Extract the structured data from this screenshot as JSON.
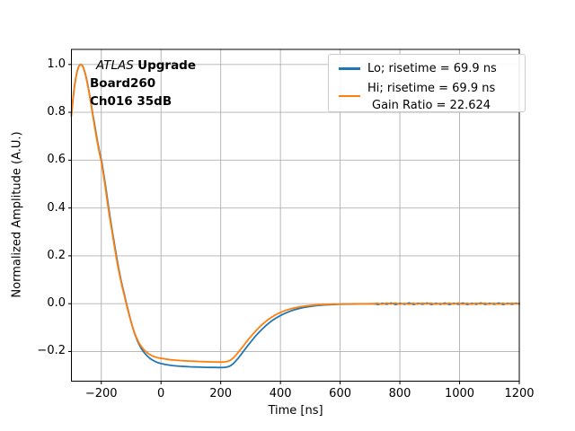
{
  "figure": {
    "background": "#ffffff",
    "annotation": {
      "line1_italic": "ATLAS",
      "line1_bold": "Upgrade",
      "line2": "Board260",
      "line3": "Ch016 35dB"
    },
    "legend": {
      "lo_label": "Lo; risetime = 69.9 ns",
      "hi_label_line1": "Hi; risetime = 69.9 ns",
      "hi_label_line2": "Gain Ratio = 22.624"
    }
  },
  "chart_data": {
    "type": "line",
    "title": "",
    "xlabel": "Time [ns]",
    "ylabel": "Normalized Amplitude (A.U.)",
    "xlim": [
      -300,
      1200
    ],
    "ylim": [
      -0.32,
      1.065
    ],
    "grid": true,
    "grid_color": "#b0b0b0",
    "spine_color": "#000000",
    "legend_position": "upper right",
    "xticks": [
      -200,
      0,
      200,
      400,
      600,
      800,
      1000,
      1200
    ],
    "xtick_labels": [
      "−200",
      "0",
      "200",
      "400",
      "600",
      "800",
      "1000",
      "1200"
    ],
    "yticks": [
      1.0,
      0.8,
      0.6,
      0.4,
      0.2,
      0.0,
      -0.2
    ],
    "ytick_labels": [
      "1.0",
      "0.8",
      "0.6",
      "0.4",
      "0.2",
      "0.0",
      "−0.2"
    ],
    "series": [
      {
        "name": "Lo; risetime = 69.9 ns",
        "color": "#1f77b4",
        "points": [
          [
            -300,
            0.785
          ],
          [
            -295,
            0.853
          ],
          [
            -290,
            0.906
          ],
          [
            -285,
            0.946
          ],
          [
            -280,
            0.975
          ],
          [
            -276,
            0.99
          ],
          [
            -272,
            0.998
          ],
          [
            -268,
            1.0
          ],
          [
            -264,
            0.997
          ],
          [
            -260,
            0.986
          ],
          [
            -256,
            0.972
          ],
          [
            -252,
            0.953
          ],
          [
            -248,
            0.932
          ],
          [
            -244,
            0.907
          ],
          [
            -240,
            0.88
          ],
          [
            -236,
            0.851
          ],
          [
            -232,
            0.82
          ],
          [
            -228,
            0.789
          ],
          [
            -225,
            0.769
          ],
          [
            -219,
            0.724
          ],
          [
            -212,
            0.674
          ],
          [
            -205,
            0.629
          ],
          [
            -198,
            0.59
          ],
          [
            -191,
            0.535
          ],
          [
            -184,
            0.477
          ],
          [
            -177,
            0.415
          ],
          [
            -170,
            0.357
          ],
          [
            -163,
            0.303
          ],
          [
            -156,
            0.249
          ],
          [
            -149,
            0.197
          ],
          [
            -142,
            0.149
          ],
          [
            -135,
            0.105
          ],
          [
            -128,
            0.065
          ],
          [
            -122,
            0.035
          ],
          [
            -116,
            0.003
          ],
          [
            -110,
            -0.027
          ],
          [
            -104,
            -0.057
          ],
          [
            -98,
            -0.085
          ],
          [
            -92,
            -0.111
          ],
          [
            -86,
            -0.133
          ],
          [
            -80,
            -0.152
          ],
          [
            -74,
            -0.169
          ],
          [
            -68,
            -0.183
          ],
          [
            -61,
            -0.197
          ],
          [
            -54,
            -0.208
          ],
          [
            -47,
            -0.2175
          ],
          [
            -40,
            -0.2255
          ],
          [
            -33,
            -0.232
          ],
          [
            -26,
            -0.2375
          ],
          [
            -18,
            -0.2425
          ],
          [
            -10,
            -0.2465
          ],
          [
            -2,
            -0.2495
          ],
          [
            6,
            -0.252
          ],
          [
            16,
            -0.2545
          ],
          [
            26,
            -0.2565
          ],
          [
            38,
            -0.2585
          ],
          [
            50,
            -0.26
          ],
          [
            64,
            -0.2615
          ],
          [
            80,
            -0.2628
          ],
          [
            96,
            -0.2638
          ],
          [
            114,
            -0.2647
          ],
          [
            132,
            -0.2654
          ],
          [
            150,
            -0.266
          ],
          [
            166,
            -0.2664
          ],
          [
            180,
            -0.2667
          ],
          [
            192,
            -0.2669
          ],
          [
            202,
            -0.2669
          ],
          [
            211,
            -0.2665
          ],
          [
            219,
            -0.2654
          ],
          [
            226,
            -0.2632
          ],
          [
            232,
            -0.2598
          ],
          [
            238,
            -0.2547
          ],
          [
            244,
            -0.248
          ],
          [
            250,
            -0.2402
          ],
          [
            256,
            -0.2315
          ],
          [
            262,
            -0.2222
          ],
          [
            269,
            -0.2108
          ],
          [
            276,
            -0.1993
          ],
          [
            283,
            -0.1878
          ],
          [
            291,
            -0.1748
          ],
          [
            299,
            -0.1621
          ],
          [
            308,
            -0.1483
          ],
          [
            317,
            -0.1351
          ],
          [
            327,
            -0.1213
          ],
          [
            337,
            -0.1083
          ],
          [
            348,
            -0.0952
          ],
          [
            359,
            -0.0834
          ],
          [
            371,
            -0.0718
          ],
          [
            383,
            -0.0617
          ],
          [
            395,
            -0.0528
          ],
          [
            407,
            -0.045
          ],
          [
            419,
            -0.0382
          ],
          [
            431,
            -0.0323
          ],
          [
            443,
            -0.0272
          ],
          [
            455,
            -0.0228
          ],
          [
            467,
            -0.0191
          ],
          [
            479,
            -0.0159
          ],
          [
            491,
            -0.0132
          ],
          [
            503,
            -0.0109
          ],
          [
            518,
            -0.0086
          ],
          [
            533,
            -0.0068
          ],
          [
            548,
            -0.0053
          ],
          [
            563,
            -0.0042
          ],
          [
            578,
            -0.0033
          ],
          [
            593,
            -0.0026
          ],
          [
            613,
            -0.0019
          ],
          [
            633,
            -0.0014
          ],
          [
            653,
            -0.001
          ],
          [
            673,
            -0.0008
          ],
          [
            693,
            -0.0006
          ],
          [
            713,
            -0.0005
          ],
          [
            727,
            -0.0035
          ],
          [
            741,
            0.0015
          ],
          [
            756,
            -0.0028
          ],
          [
            771,
            0.0025
          ],
          [
            786,
            -0.0035
          ],
          [
            801,
            0.0018
          ],
          [
            816,
            -0.0025
          ],
          [
            831,
            0.003
          ],
          [
            846,
            -0.0032
          ],
          [
            861,
            0.0015
          ],
          [
            876,
            -0.0028
          ],
          [
            891,
            0.0028
          ],
          [
            906,
            -0.0035
          ],
          [
            921,
            0.0015
          ],
          [
            936,
            -0.0025
          ],
          [
            951,
            0.0028
          ],
          [
            966,
            -0.0032
          ],
          [
            981,
            0.0018
          ],
          [
            996,
            -0.0028
          ],
          [
            1011,
            0.0028
          ],
          [
            1026,
            -0.0035
          ],
          [
            1041,
            0.0015
          ],
          [
            1056,
            -0.0025
          ],
          [
            1071,
            0.003
          ],
          [
            1086,
            -0.003
          ],
          [
            1101,
            0.0018
          ],
          [
            1116,
            -0.0028
          ],
          [
            1131,
            0.0026
          ],
          [
            1146,
            -0.0033
          ],
          [
            1161,
            0.0016
          ],
          [
            1176,
            -0.0026
          ],
          [
            1190,
            0.0022
          ],
          [
            1200,
            -0.0015
          ]
        ]
      },
      {
        "name": "Hi; risetime = 69.9 ns  Gain Ratio = 22.624",
        "color": "#ff7f0e",
        "points": [
          [
            -300,
            0.785
          ],
          [
            -295,
            0.853
          ],
          [
            -290,
            0.906
          ],
          [
            -285,
            0.946
          ],
          [
            -280,
            0.975
          ],
          [
            -276,
            0.99
          ],
          [
            -272,
            0.998
          ],
          [
            -268,
            1.0
          ],
          [
            -264,
            0.996
          ],
          [
            -260,
            0.985
          ],
          [
            -256,
            0.97
          ],
          [
            -252,
            0.951
          ],
          [
            -248,
            0.929
          ],
          [
            -244,
            0.904
          ],
          [
            -240,
            0.876
          ],
          [
            -236,
            0.846
          ],
          [
            -232,
            0.815
          ],
          [
            -228,
            0.783
          ],
          [
            -221,
            0.729
          ],
          [
            -214,
            0.679
          ],
          [
            -207,
            0.634
          ],
          [
            -200,
            0.595
          ],
          [
            -193,
            0.54
          ],
          [
            -186,
            0.482
          ],
          [
            -179,
            0.42
          ],
          [
            -172,
            0.362
          ],
          [
            -165,
            0.308
          ],
          [
            -158,
            0.254
          ],
          [
            -151,
            0.202
          ],
          [
            -144,
            0.154
          ],
          [
            -137,
            0.11
          ],
          [
            -130,
            0.07
          ],
          [
            -124,
            0.04
          ],
          [
            -118,
            0.008
          ],
          [
            -112,
            -0.022
          ],
          [
            -106,
            -0.051
          ],
          [
            -100,
            -0.078
          ],
          [
            -94,
            -0.103
          ],
          [
            -88,
            -0.124
          ],
          [
            -82,
            -0.142
          ],
          [
            -76,
            -0.158
          ],
          [
            -70,
            -0.171
          ],
          [
            -63,
            -0.184
          ],
          [
            -56,
            -0.194
          ],
          [
            -49,
            -0.202
          ],
          [
            -42,
            -0.209
          ],
          [
            -35,
            -0.2145
          ],
          [
            -28,
            -0.219
          ],
          [
            -20,
            -0.2225
          ],
          [
            -12,
            -0.2253
          ],
          [
            -4,
            -0.2273
          ],
          [
            4,
            -0.229
          ],
          [
            14,
            -0.2312
          ],
          [
            24,
            -0.233
          ],
          [
            36,
            -0.2348
          ],
          [
            48,
            -0.2362
          ],
          [
            62,
            -0.2375
          ],
          [
            78,
            -0.2387
          ],
          [
            95,
            -0.2398
          ],
          [
            112,
            -0.2408
          ],
          [
            130,
            -0.2417
          ],
          [
            148,
            -0.2425
          ],
          [
            164,
            -0.2431
          ],
          [
            178,
            -0.2436
          ],
          [
            190,
            -0.2439
          ],
          [
            200,
            -0.244
          ],
          [
            209,
            -0.2437
          ],
          [
            217,
            -0.2428
          ],
          [
            224,
            -0.241
          ],
          [
            230,
            -0.238
          ],
          [
            236,
            -0.2332
          ],
          [
            242,
            -0.2268
          ],
          [
            248,
            -0.2192
          ],
          [
            254,
            -0.2107
          ],
          [
            260,
            -0.2016
          ],
          [
            267,
            -0.1905
          ],
          [
            274,
            -0.1793
          ],
          [
            281,
            -0.1681
          ],
          [
            289,
            -0.1555
          ],
          [
            297,
            -0.1432
          ],
          [
            306,
            -0.1299
          ],
          [
            315,
            -0.1172
          ],
          [
            325,
            -0.104
          ],
          [
            335,
            -0.0917
          ],
          [
            346,
            -0.0794
          ],
          [
            357,
            -0.0684
          ],
          [
            369,
            -0.0578
          ],
          [
            381,
            -0.0486
          ],
          [
            393,
            -0.0407
          ],
          [
            405,
            -0.034
          ],
          [
            417,
            -0.0283
          ],
          [
            429,
            -0.0235
          ],
          [
            441,
            -0.0194
          ],
          [
            453,
            -0.016
          ],
          [
            465,
            -0.0132
          ],
          [
            477,
            -0.0108
          ],
          [
            489,
            -0.0089
          ],
          [
            501,
            -0.0073
          ],
          [
            516,
            -0.0057
          ],
          [
            531,
            -0.0044
          ],
          [
            546,
            -0.0034
          ],
          [
            561,
            -0.0026
          ],
          [
            576,
            -0.002
          ],
          [
            591,
            -0.0015
          ],
          [
            611,
            -0.0011
          ],
          [
            631,
            -0.0008
          ],
          [
            651,
            -0.0005
          ],
          [
            671,
            -0.0004
          ],
          [
            691,
            -0.0003
          ],
          [
            711,
            -0.0002
          ],
          [
            725,
            0.0015
          ],
          [
            740,
            -0.0018
          ],
          [
            755,
            0.0022
          ],
          [
            770,
            -0.0012
          ],
          [
            785,
            0.0025
          ],
          [
            800,
            -0.002
          ],
          [
            815,
            0.001
          ],
          [
            830,
            -0.0022
          ],
          [
            845,
            0.0018
          ],
          [
            860,
            -0.0015
          ],
          [
            875,
            0.0024
          ],
          [
            890,
            -0.001
          ],
          [
            905,
            0.002
          ],
          [
            920,
            -0.0024
          ],
          [
            935,
            0.0012
          ],
          [
            950,
            -0.0018
          ],
          [
            965,
            0.0022
          ],
          [
            980,
            -0.0014
          ],
          [
            995,
            0.0025
          ],
          [
            1010,
            -0.002
          ],
          [
            1025,
            0.0015
          ],
          [
            1040,
            -0.0022
          ],
          [
            1055,
            0.002
          ],
          [
            1070,
            -0.0012
          ],
          [
            1085,
            0.0024
          ],
          [
            1100,
            -0.0018
          ],
          [
            1115,
            0.0014
          ],
          [
            1130,
            -0.0024
          ],
          [
            1145,
            0.002
          ],
          [
            1160,
            -0.0015
          ],
          [
            1175,
            0.0022
          ],
          [
            1188,
            -0.001
          ],
          [
            1200,
            0.0012
          ]
        ]
      }
    ]
  }
}
